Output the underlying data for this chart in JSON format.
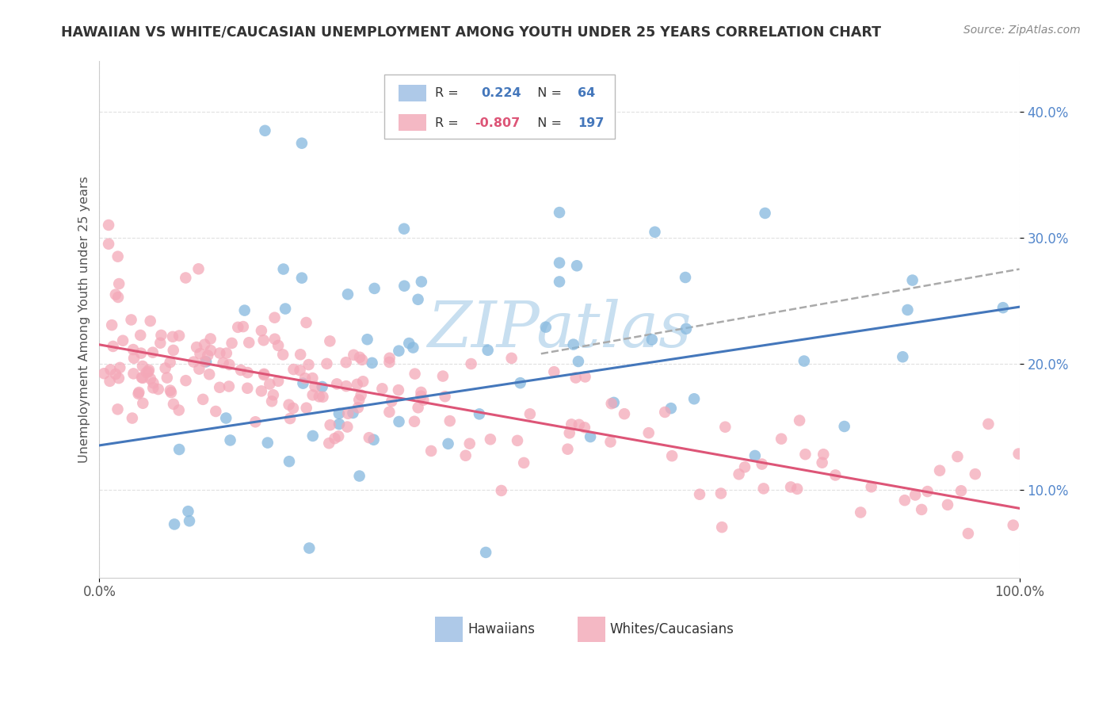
{
  "title": "HAWAIIAN VS WHITE/CAUCASIAN UNEMPLOYMENT AMONG YOUTH UNDER 25 YEARS CORRELATION CHART",
  "source": "Source: ZipAtlas.com",
  "ylabel": "Unemployment Among Youth under 25 years",
  "xlim": [
    0.0,
    1.0
  ],
  "ylim": [
    0.03,
    0.44
  ],
  "x_ticks": [
    0.0,
    1.0
  ],
  "x_tick_labels": [
    "0.0%",
    "100.0%"
  ],
  "y_ticks": [
    0.1,
    0.2,
    0.3,
    0.4
  ],
  "y_tick_labels": [
    "10.0%",
    "20.0%",
    "30.0%",
    "40.0%"
  ],
  "hawaiian_R": 0.224,
  "hawaiian_N": 64,
  "white_R": -0.807,
  "white_N": 197,
  "hawaiian_color": "#85b8de",
  "white_color": "#f4a8b8",
  "hawaiian_line_color": "#4477bb",
  "white_line_color": "#dd5577",
  "dashed_line_color": "#aaaaaa",
  "watermark_color": "#c8dff0",
  "background_color": "#ffffff",
  "grid_color": "#e0e0e0",
  "legend_box_color_hawaiian": "#aec9e8",
  "legend_box_color_white": "#f4b8c4",
  "ytick_color": "#5588cc",
  "xtick_color": "#555555",
  "ylabel_color": "#555555",
  "title_color": "#333333",
  "source_color": "#888888",
  "haw_trend_start_y": 0.135,
  "haw_trend_end_y": 0.245,
  "wht_trend_start_y": 0.215,
  "wht_trend_end_y": 0.085
}
